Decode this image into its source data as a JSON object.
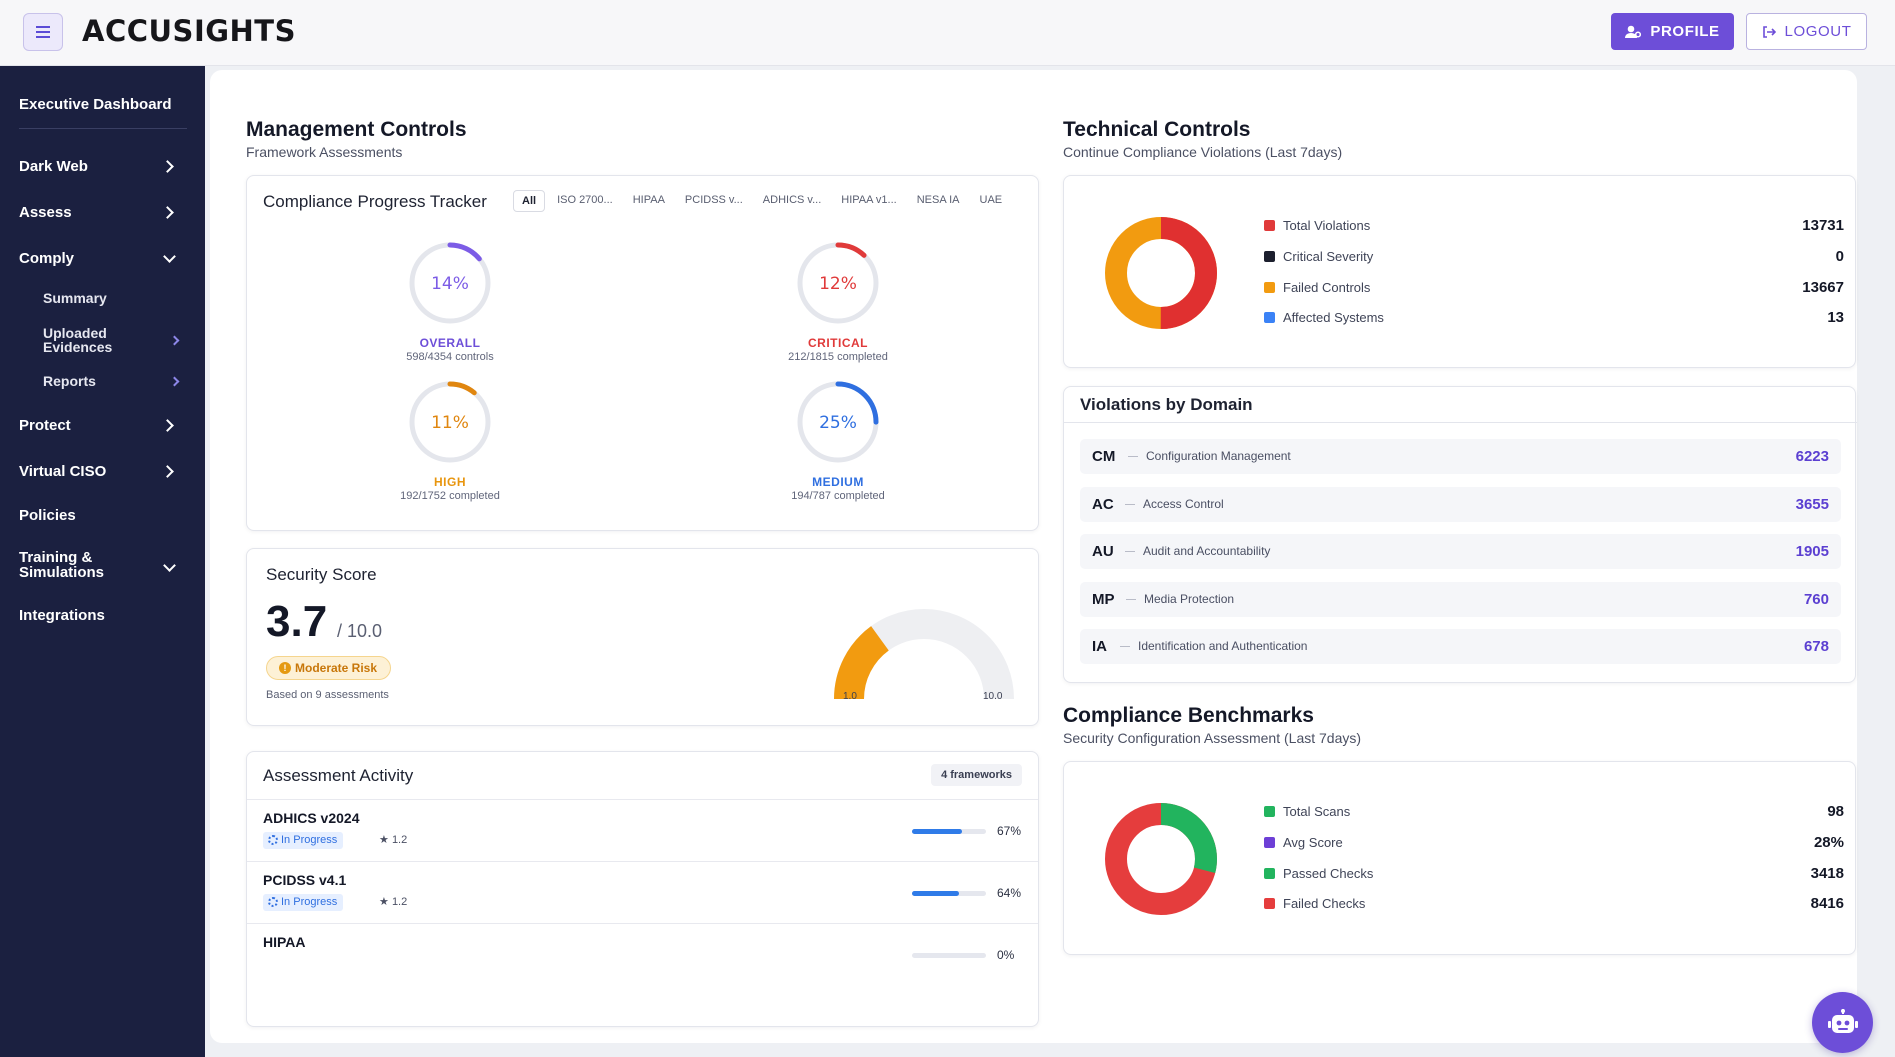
{
  "header": {
    "logo": "ACCUSIGHTS",
    "profile_label": "PROFILE",
    "logout_label": "LOGOUT"
  },
  "sidebar": {
    "executive": "Executive Dashboard",
    "dark_web": "Dark Web",
    "assess": "Assess",
    "comply": "Comply",
    "summary": "Summary",
    "uploaded_evidences_1": "Uploaded",
    "uploaded_evidences_2": "Evidences",
    "reports": "Reports",
    "protect": "Protect",
    "virtual_ciso": "Virtual CISO",
    "policies": "Policies",
    "training_1": "Training &",
    "training_2": "Simulations",
    "integrations": "Integrations"
  },
  "management": {
    "title": "Management Controls",
    "subtitle": "Framework Assessments",
    "tracker": {
      "title": "Compliance Progress Tracker",
      "tabs": [
        "All",
        "ISO 2700...",
        "HIPAA",
        "PCIDSS v...",
        "ADHICS v...",
        "HIPAA v1...",
        "NESA IA",
        "UAE"
      ],
      "overall": {
        "pct": "14%",
        "value": 14,
        "label": "OVERALL",
        "sub": "598/4354 controls",
        "color": "#7c5ce6"
      },
      "critical": {
        "pct": "12%",
        "value": 12,
        "label": "CRITICAL",
        "sub": "212/1815 completed",
        "color": "#e03a3a"
      },
      "high": {
        "pct": "11%",
        "value": 11,
        "label": "HIGH",
        "sub": "192/1752 completed",
        "color": "#e0860f"
      },
      "medium": {
        "pct": "25%",
        "value": 25,
        "label": "MEDIUM",
        "sub": "194/787 completed",
        "color": "#2f6fe0"
      }
    },
    "score": {
      "title": "Security Score",
      "value": "3.7",
      "max": "/ 10.0",
      "risk": "Moderate Risk",
      "basis": "Based on 9 assessments",
      "gauge_min": "1.0",
      "gauge_max": "10.0",
      "gauge_fraction": 0.3
    },
    "activity": {
      "title": "Assessment Activity",
      "badge": "4 frameworks",
      "rows": [
        {
          "name": "ADHICS v2024",
          "status": "In Progress",
          "version": "1.2",
          "pct": "67%",
          "value": 67
        },
        {
          "name": "PCIDSS v4.1",
          "status": "In Progress",
          "version": "1.2",
          "pct": "64%",
          "value": 64
        },
        {
          "name": "HIPAA",
          "pct": "0%",
          "value": 0
        }
      ]
    }
  },
  "technical": {
    "title": "Technical Controls",
    "subtitle": "Continue Compliance Violations (Last 7days)",
    "legend": [
      {
        "label": "Total Violations",
        "value": "13731",
        "color": "#e03a3a"
      },
      {
        "label": "Critical Severity",
        "value": "0",
        "color": "#1c1f2e"
      },
      {
        "label": "Failed Controls",
        "value": "13667",
        "color": "#f29b10"
      },
      {
        "label": "Affected Systems",
        "value": "13",
        "color": "#3b82f6"
      }
    ],
    "donut": {
      "red_fraction": 0.5,
      "orange_fraction": 0.5
    }
  },
  "domains": {
    "title": "Violations by Domain",
    "rows": [
      {
        "code": "CM",
        "name": "Configuration Management",
        "value": "6223"
      },
      {
        "code": "AC",
        "name": "Access Control",
        "value": "3655"
      },
      {
        "code": "AU",
        "name": "Audit and Accountability",
        "value": "1905"
      },
      {
        "code": "MP",
        "name": "Media Protection",
        "value": "760"
      },
      {
        "code": "IA",
        "name": "Identification and Authentication",
        "value": "678"
      }
    ]
  },
  "benchmarks": {
    "title": "Compliance Benchmarks",
    "subtitle": "Security Configuration Assessment (Last 7days)",
    "legend": [
      {
        "label": "Total Scans",
        "value": "98",
        "color": "#22b45e"
      },
      {
        "label": "Avg Score",
        "value": "28%",
        "color": "#6d3fd6"
      },
      {
        "label": "Passed Checks",
        "value": "3418",
        "color": "#22b45e"
      },
      {
        "label": "Failed Checks",
        "value": "8416",
        "color": "#e53d3d"
      }
    ],
    "donut": {
      "green_fraction": 0.29,
      "red_fraction": 0.71
    }
  }
}
